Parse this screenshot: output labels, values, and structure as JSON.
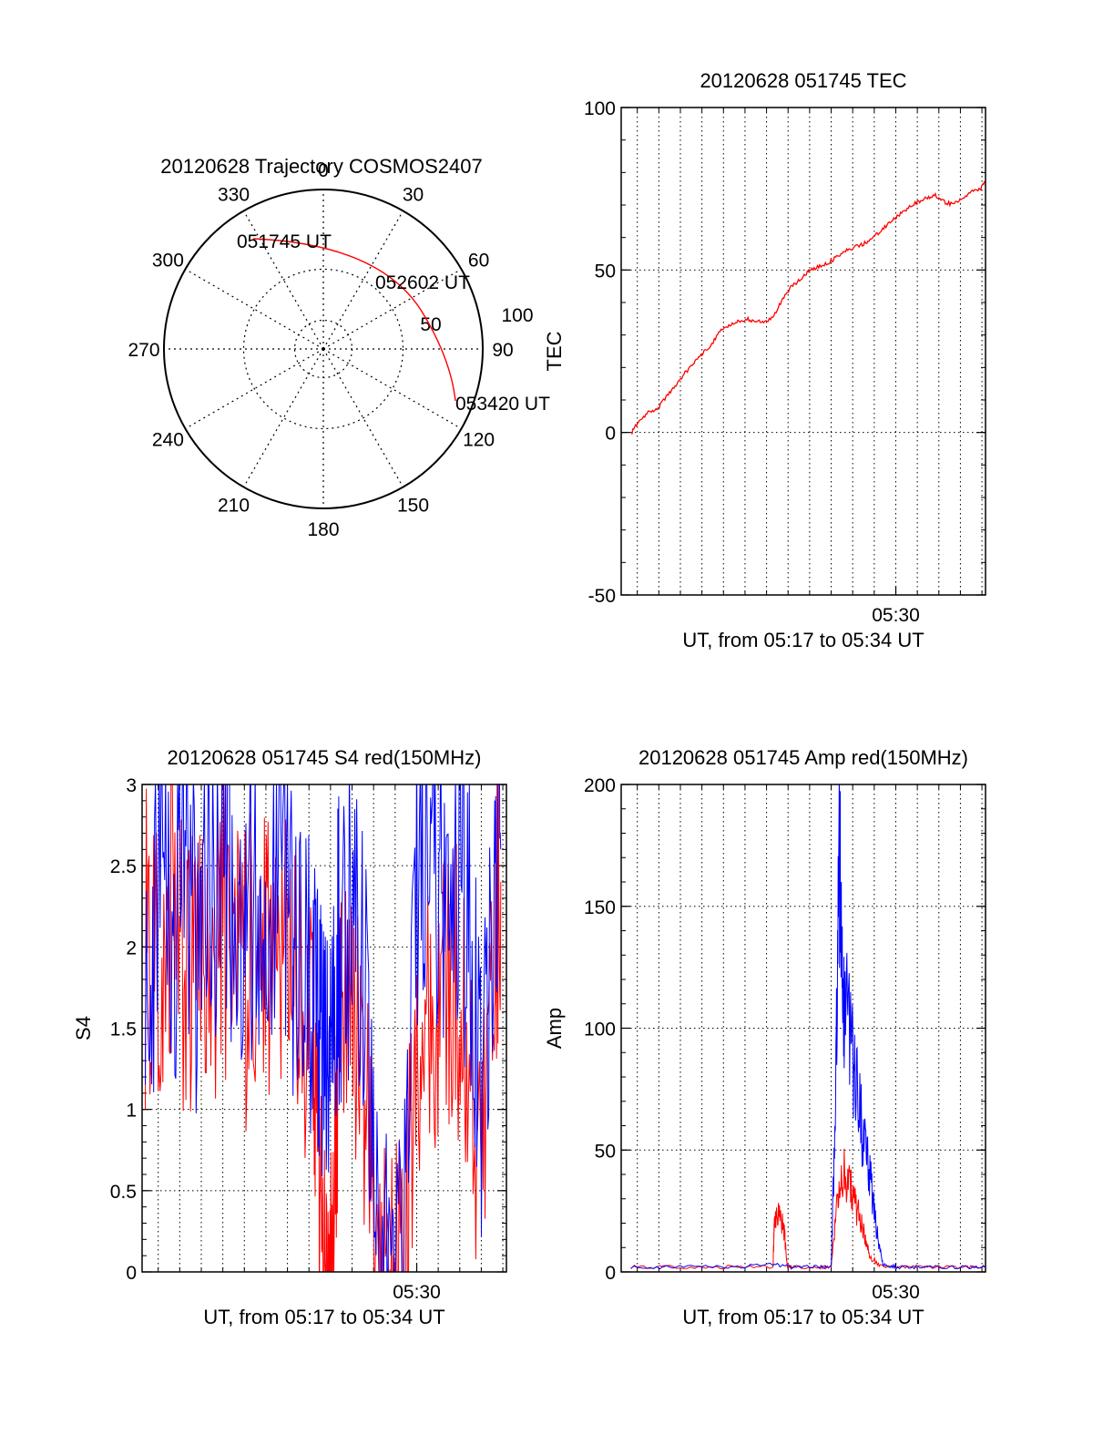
{
  "chart_data": [
    {
      "type": "polar",
      "title": "20120628 Trajectory COSMOS2407",
      "angle_labels": [
        "0",
        "30",
        "60",
        "90",
        "120",
        "150",
        "180",
        "210",
        "240",
        "270",
        "300",
        "330"
      ],
      "radial_labels": [
        "50",
        "100"
      ],
      "elevation_range": [
        0,
        100
      ],
      "annotations": [
        {
          "text": "051745 UT",
          "azimuth": 333,
          "elevation": 31
        },
        {
          "text": "052602 UT",
          "azimuth": 58,
          "elevation": 42
        },
        {
          "text": "053420 UT",
          "azimuth": 113,
          "elevation": 10
        }
      ],
      "trajectory": {
        "color": "#ff0000",
        "azimuth": [
          333,
          345,
          0,
          15,
          30,
          45,
          58,
          70,
          80,
          90,
          100,
          108,
          113
        ],
        "elevation": [
          31,
          33,
          34,
          36,
          38,
          40,
          42,
          40,
          36,
          30,
          22,
          15,
          10
        ]
      }
    },
    {
      "type": "line",
      "title": "20120628 051745 TEC",
      "xlabel": "UT, from 05:17 to 05:34 UT",
      "ylabel": "TEC",
      "xlim": [
        5.2875,
        5.5694
      ],
      "ylim": [
        -50,
        100
      ],
      "yticks": [
        "-50",
        "0",
        "50",
        "100"
      ],
      "xtick_labels": [
        {
          "label": "05:30",
          "x": 5.5
        }
      ],
      "grid": true,
      "series": [
        {
          "color": "#ff0000",
          "x": [
            5.2958,
            5.3014,
            5.3083,
            5.3153,
            5.3222,
            5.3292,
            5.3361,
            5.3431,
            5.35,
            5.3569,
            5.3639,
            5.3708,
            5.3778,
            5.3847,
            5.3917,
            5.3986,
            5.4056,
            5.4125,
            5.4194,
            5.4264,
            5.4333,
            5.4403,
            5.4472,
            5.4542,
            5.4611,
            5.4681,
            5.475,
            5.4819,
            5.4889,
            5.4958,
            5.5028,
            5.5097,
            5.5167,
            5.5236,
            5.5306,
            5.5375,
            5.5444,
            5.5514,
            5.5583,
            5.5653,
            5.5694
          ],
          "values": [
            0,
            4,
            6,
            7,
            11,
            14,
            18,
            21,
            24,
            27,
            31,
            33,
            34,
            35,
            34,
            34,
            36,
            41,
            45,
            47,
            50,
            51,
            52,
            54,
            56,
            57,
            58,
            60,
            62,
            65,
            67,
            69,
            71,
            72,
            73,
            71,
            70,
            72,
            74,
            75,
            77
          ]
        }
      ]
    },
    {
      "type": "line",
      "title": "20120628 051745 S4 red(150MHz)",
      "xlabel": "UT, from 05:17 to 05:34 UT",
      "ylabel": "S4",
      "xlim": [
        5.2875,
        5.5694
      ],
      "ylim": [
        0,
        3
      ],
      "yticks": [
        "0",
        "0.5",
        "1",
        "1.5",
        "2",
        "2.5",
        "3"
      ],
      "xtick_labels": [
        {
          "label": "05:30",
          "x": 5.5
        }
      ],
      "grid": true,
      "series": [
        {
          "color": "#ff0000",
          "x": [
            5.29,
            5.3,
            5.31,
            5.32,
            5.33,
            5.34,
            5.35,
            5.36,
            5.37,
            5.38,
            5.39,
            5.4,
            5.41,
            5.42,
            5.425,
            5.43,
            5.435,
            5.44,
            5.45,
            5.46,
            5.47,
            5.48,
            5.49,
            5.5,
            5.51,
            5.52,
            5.53,
            5.54,
            5.55,
            5.56,
            5.565
          ],
          "values": [
            2.0,
            1.8,
            2.4,
            1.7,
            2.1,
            1.6,
            2.2,
            1.9,
            1.8,
            2.3,
            1.7,
            2.0,
            1.6,
            1.5,
            0.4,
            0.2,
            0.3,
            1.6,
            1.5,
            1.1,
            0.2,
            0.15,
            0.2,
            1.2,
            1.5,
            1.7,
            1.8,
            1.3,
            0.5,
            2.2,
            2.4
          ]
        },
        {
          "color": "#0000ff",
          "x": [
            5.29,
            5.3,
            5.31,
            5.32,
            5.33,
            5.34,
            5.35,
            5.36,
            5.37,
            5.38,
            5.39,
            5.4,
            5.41,
            5.42,
            5.425,
            5.43,
            5.435,
            5.44,
            5.45,
            5.46,
            5.47,
            5.48,
            5.49,
            5.5,
            5.51,
            5.52,
            5.53,
            5.54,
            5.55,
            5.56,
            5.565
          ],
          "values": [
            1.8,
            2.3,
            2.0,
            2.5,
            1.9,
            2.2,
            2.6,
            2.0,
            2.4,
            2.1,
            2.5,
            2.2,
            1.9,
            1.8,
            1.5,
            1.4,
            1.6,
            2.0,
            2.2,
            1.9,
            0.2,
            0.18,
            0.25,
            2.4,
            2.6,
            2.3,
            2.5,
            2.2,
            1.0,
            2.4,
            2.6
          ]
        }
      ]
    },
    {
      "type": "line",
      "title": "20120628 051745 Amp red(150MHz)",
      "xlabel": "UT, from 05:17 to 05:34 UT",
      "ylabel": "Amp",
      "xlim": [
        5.2875,
        5.5694
      ],
      "ylim": [
        0,
        200
      ],
      "yticks": [
        "0",
        "50",
        "100",
        "150",
        "200"
      ],
      "xtick_labels": [
        {
          "label": "05:30",
          "x": 5.5
        }
      ],
      "grid": true,
      "series": [
        {
          "color": "#ff0000",
          "x": [
            5.295,
            5.33,
            5.37,
            5.405,
            5.406,
            5.41,
            5.414,
            5.416,
            5.42,
            5.44,
            5.45,
            5.455,
            5.46,
            5.465,
            5.47,
            5.475,
            5.48,
            5.49,
            5.52,
            5.55,
            5.569
          ],
          "values": [
            2,
            2,
            2,
            2,
            20,
            24,
            15,
            2,
            2,
            2,
            2,
            30,
            40,
            35,
            25,
            18,
            6,
            2,
            2,
            2,
            2
          ]
        },
        {
          "color": "#0000ff",
          "x": [
            5.295,
            5.33,
            5.37,
            5.405,
            5.42,
            5.44,
            5.45,
            5.453,
            5.456,
            5.458,
            5.46,
            5.465,
            5.47,
            5.475,
            5.48,
            5.485,
            5.49,
            5.5,
            5.52,
            5.55,
            5.569
          ],
          "values": [
            2,
            2,
            2,
            3,
            2,
            2,
            2,
            60,
            178,
            145,
            110,
            95,
            75,
            55,
            40,
            18,
            3,
            2,
            2,
            2,
            2
          ]
        }
      ]
    }
  ]
}
